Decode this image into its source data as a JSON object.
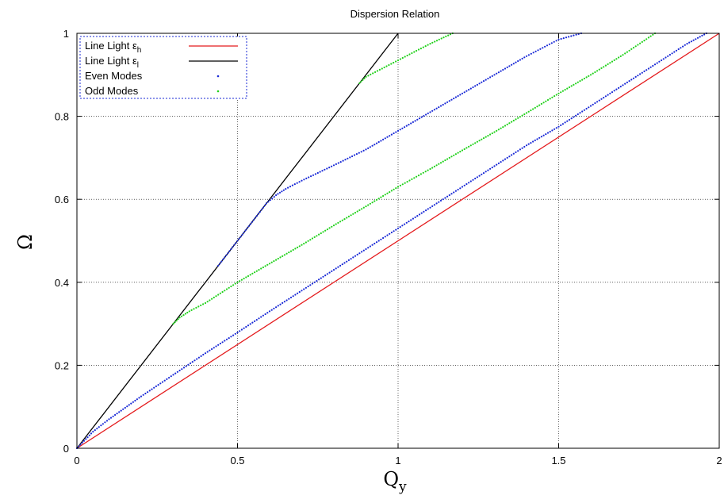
{
  "chart_data": {
    "type": "scatter",
    "title": "Dispersion Relation",
    "xlabel": "Q",
    "xlabel_sub": "y",
    "ylabel": "Ω",
    "xlim": [
      0,
      2
    ],
    "ylim": [
      0,
      1
    ],
    "xticks": [
      0,
      0.5,
      1,
      1.5,
      2
    ],
    "xtick_labels": [
      "0",
      "0.5",
      "1",
      "1.5",
      "2"
    ],
    "yticks": [
      0,
      0.2,
      0.4,
      0.6,
      0.8,
      1
    ],
    "ytick_labels": [
      "0",
      "0.2",
      "0.4",
      "0.6",
      "0.8",
      "1"
    ],
    "grid": true,
    "legend_position": "top-left",
    "series": [
      {
        "name": "Line Light ε",
        "name_sub": "h",
        "kind": "line",
        "color": "#e41a1c",
        "x": [
          0,
          2
        ],
        "y": [
          0,
          1
        ]
      },
      {
        "name": "Line Light ε",
        "name_sub": "l",
        "kind": "line",
        "color": "#000000",
        "x": [
          0,
          1
        ],
        "y": [
          0,
          1
        ]
      },
      {
        "name": "Even Modes",
        "kind": "points",
        "color": "#1a2ad6",
        "curves": [
          {
            "x": [
              0,
              0.05,
              0.1,
              0.2,
              0.3,
              0.4,
              0.5,
              0.6,
              0.7,
              0.8,
              0.9,
              1.0,
              1.1,
              1.2,
              1.3,
              1.4,
              1.5,
              1.6,
              1.7,
              1.8,
              1.9,
              1.96
            ],
            "y": [
              0,
              0.04,
              0.07,
              0.125,
              0.177,
              0.229,
              0.279,
              0.33,
              0.38,
              0.43,
              0.48,
              0.53,
              0.58,
              0.63,
              0.68,
              0.73,
              0.775,
              0.825,
              0.875,
              0.925,
              0.975,
              1.0
            ]
          },
          {
            "x": [
              0.44,
              0.5,
              0.55,
              0.59,
              0.62,
              0.65,
              0.7,
              0.8,
              0.9,
              1.0,
              1.1,
              1.2,
              1.3,
              1.4,
              1.5,
              1.57
            ],
            "y": [
              0.44,
              0.5,
              0.55,
              0.59,
              0.61,
              0.625,
              0.645,
              0.682,
              0.72,
              0.765,
              0.81,
              0.855,
              0.9,
              0.945,
              0.985,
              1.0
            ]
          }
        ]
      },
      {
        "name": "Odd Modes",
        "kind": "points",
        "color": "#22d11c",
        "curves": [
          {
            "x": [
              0.3,
              0.32,
              0.35,
              0.4,
              0.5,
              0.6,
              0.7,
              0.8,
              0.9,
              1.0,
              1.1,
              1.2,
              1.3,
              1.4,
              1.5,
              1.6,
              1.7,
              1.8
            ],
            "y": [
              0.3,
              0.315,
              0.33,
              0.35,
              0.4,
              0.445,
              0.49,
              0.537,
              0.583,
              0.63,
              0.673,
              0.718,
              0.762,
              0.808,
              0.855,
              0.9,
              0.948,
              1.0
            ]
          },
          {
            "x": [
              0.88,
              0.9,
              0.95,
              1.0,
              1.05,
              1.1,
              1.17
            ],
            "y": [
              0.88,
              0.895,
              0.915,
              0.935,
              0.955,
              0.975,
              1.0
            ]
          }
        ]
      }
    ]
  }
}
